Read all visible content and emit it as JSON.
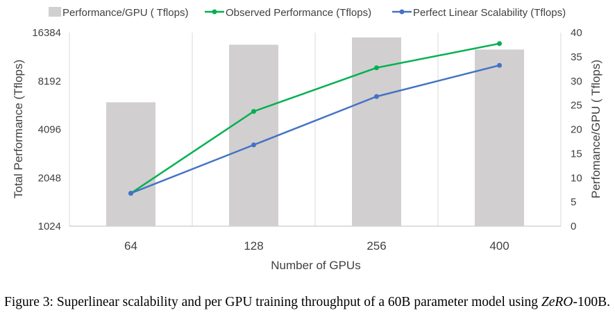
{
  "chart_data": {
    "type": "bar+line",
    "categories": [
      "64",
      "128",
      "256",
      "400"
    ],
    "xlabel": "Number of GPUs",
    "ylabel_left": "Total Performance (Tflops)",
    "ylabel_right": "Perfomance/GPU ( Tflops)",
    "left_axis": {
      "scale": "log2",
      "ticks": [
        "1024",
        "2048",
        "4096",
        "8192",
        "16384"
      ],
      "range": [
        1024,
        16384
      ]
    },
    "right_axis": {
      "scale": "linear",
      "ticks": [
        "0",
        "5",
        "10",
        "15",
        "20",
        "25",
        "30",
        "35",
        "40"
      ],
      "range": [
        0,
        40
      ]
    },
    "bars": {
      "name": "Performance/GPU ( Tflops)",
      "axis": "right",
      "color": "#d1cfd0",
      "values": [
        25.6,
        37.5,
        39.0,
        36.5
      ]
    },
    "series": [
      {
        "name": "Observed Performance (Tflops)",
        "axis": "left",
        "color": "#00b050",
        "values": [
          1640,
          5300,
          9900,
          14000
        ]
      },
      {
        "name": "Perfect Linear Scalability (Tflops)",
        "axis": "left",
        "color": "#4472c4",
        "values": [
          1640,
          3280,
          6560,
          10250
        ]
      }
    ],
    "legend_position": "top",
    "grid": "vertical"
  },
  "caption": {
    "label": "Figure 3:",
    "text_before": " Superlinear scalability and per GPU training throughput of a 60B parameter model using ",
    "emph": "ZeRO",
    "text_after": "-100B."
  }
}
